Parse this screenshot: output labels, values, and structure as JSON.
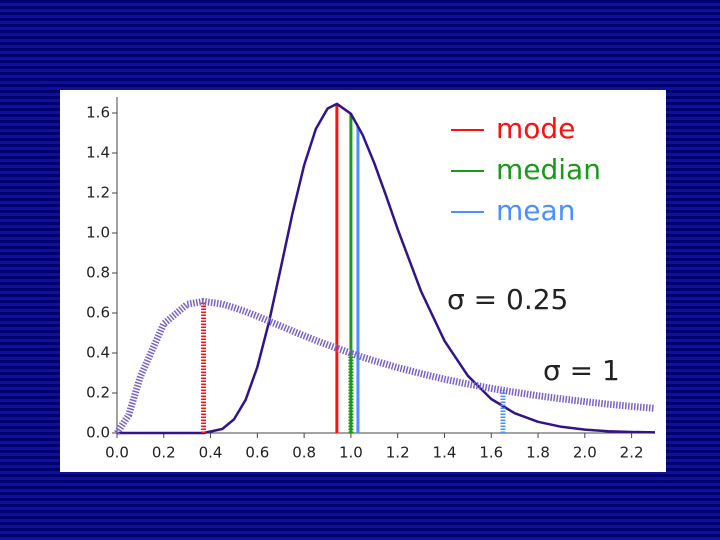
{
  "chart_data": {
    "type": "line",
    "x": [
      0,
      0.05,
      0.1,
      0.2,
      0.3,
      0.37,
      0.45,
      0.5,
      0.55,
      0.6,
      0.65,
      0.7,
      0.75,
      0.8,
      0.85,
      0.9,
      0.94,
      1.0,
      1.05,
      1.1,
      1.15,
      1.2,
      1.3,
      1.4,
      1.5,
      1.6,
      1.7,
      1.8,
      1.9,
      2.0,
      2.1,
      2.2,
      2.3
    ],
    "series": [
      {
        "name": "σ = 0.25",
        "color": "#33138a",
        "dashed": false,
        "values": [
          0,
          0,
          0,
          0,
          0,
          0,
          0.02,
          0.068,
          0.166,
          0.33,
          0.556,
          0.824,
          1.097,
          1.339,
          1.52,
          1.622,
          1.646,
          1.596,
          1.491,
          1.349,
          1.187,
          1.019,
          0.708,
          0.461,
          0.286,
          0.17,
          0.099,
          0.056,
          0.031,
          0.017,
          0.009,
          0.005,
          0.003
        ],
        "markers": [
          {
            "x": 0.94,
            "y": 1.646
          },
          {
            "x": 1.0,
            "y": 1.596
          },
          {
            "x": 1.03,
            "y": 1.534
          }
        ]
      },
      {
        "name": "σ = 1",
        "color": "#7a62c8",
        "dashed": true,
        "values": [
          0,
          0.09,
          0.282,
          0.546,
          0.644,
          0.658,
          0.645,
          0.627,
          0.607,
          0.584,
          0.559,
          0.535,
          0.51,
          0.486,
          0.463,
          0.441,
          0.424,
          0.399,
          0.379,
          0.361,
          0.344,
          0.327,
          0.297,
          0.269,
          0.245,
          0.223,
          0.204,
          0.186,
          0.171,
          0.157,
          0.144,
          0.133,
          0.123
        ],
        "markers": [
          {
            "x": 0.37,
            "y": 0.658
          },
          {
            "x": 1.0,
            "y": 0.399
          },
          {
            "x": 1.65,
            "y": 0.213
          }
        ]
      }
    ],
    "legend": [
      {
        "name": "mode",
        "color": "#ff1010"
      },
      {
        "name": "median",
        "color": "#1a9a1a"
      },
      {
        "name": "mean",
        "color": "#4a90ff"
      }
    ],
    "xlim": [
      0,
      2.3
    ],
    "xticks": [
      {
        "value": 0,
        "label": "0.0"
      },
      0.2,
      0.4,
      0.6,
      0.8,
      {
        "value": 1,
        "label": "1.0"
      },
      1.2,
      1.4,
      1.6,
      1.8,
      {
        "value": 2,
        "label": "2.0"
      },
      2.2
    ],
    "ylim": [
      0,
      1.68
    ],
    "yticks": [
      {
        "value": 0,
        "label": "0.0"
      },
      0.2,
      0.4,
      0.6,
      0.8,
      {
        "value": 1,
        "label": "1.0"
      },
      1.2,
      1.4,
      1.6
    ]
  }
}
